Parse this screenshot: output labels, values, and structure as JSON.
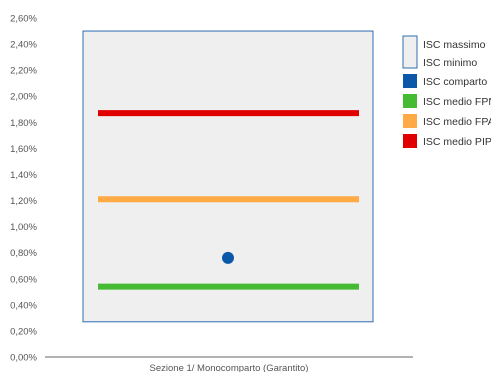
{
  "chart_data": {
    "type": "bar",
    "title": "",
    "xlabel": "",
    "ylabel": "",
    "categories": [
      "Sezione 1/ Monocomparto (Garantito)"
    ],
    "y_ticks": [
      "0,00%",
      "0,20%",
      "0,40%",
      "0,60%",
      "0,80%",
      "1,00%",
      "1,20%",
      "1,40%",
      "1,60%",
      "1,80%",
      "2,00%",
      "2,20%",
      "2,40%",
      "2,60%"
    ],
    "ylim": [
      0,
      2.6
    ],
    "grid": false,
    "legend_position": "right",
    "range_box": {
      "name_max": "ISC massimo",
      "name_min": "ISC minimo",
      "max": 2.5,
      "min": 0.27,
      "color": "#efefef",
      "border": "#2e6db4"
    },
    "point": {
      "name": "ISC comparto",
      "value": 0.76,
      "color": "#0b58a8"
    },
    "reference_lines": [
      {
        "name": "ISC medio FPN",
        "value": 0.54,
        "color": "#44bb33"
      },
      {
        "name": "ISC medio FPA",
        "value": 1.21,
        "color": "#ffaa44"
      },
      {
        "name": "ISC medio PIP",
        "value": 1.87,
        "color": "#e00000"
      }
    ]
  }
}
